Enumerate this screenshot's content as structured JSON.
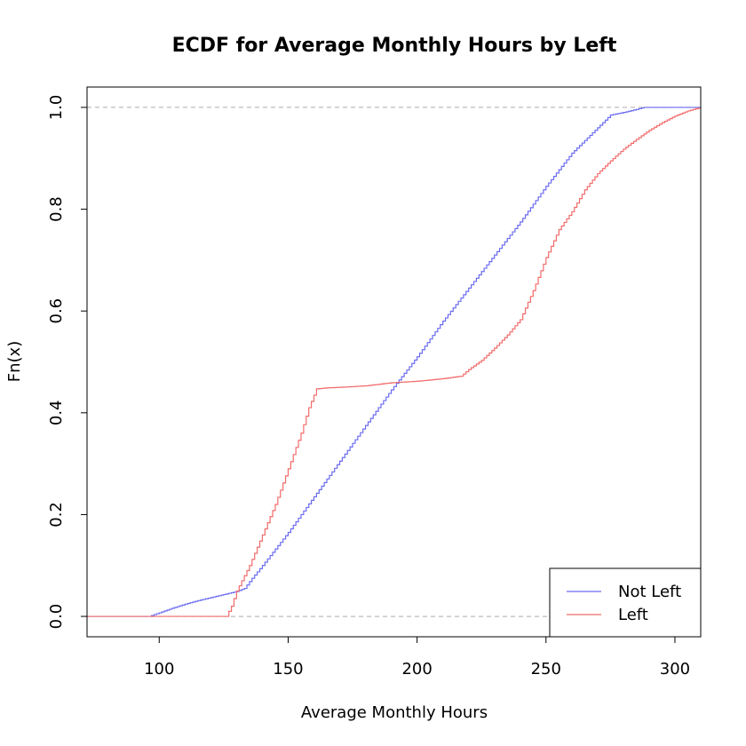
{
  "chart_data": {
    "type": "line",
    "title": "ECDF for Average Monthly Hours by Left",
    "xlabel": "Average Monthly Hours",
    "ylabel": "Fn(x)",
    "xlim": [
      72,
      310
    ],
    "ylim": [
      -0.04,
      1.04
    ],
    "x_ticks": [
      100,
      150,
      200,
      250,
      300
    ],
    "y_ticks": [
      0.0,
      0.2,
      0.4,
      0.6,
      0.8,
      1.0
    ],
    "x_tick_labels": [
      "100",
      "150",
      "200",
      "250",
      "300"
    ],
    "y_tick_labels": [
      "0.0",
      "0.2",
      "0.4",
      "0.6",
      "0.8",
      "1.0"
    ],
    "reference_lines_y": [
      0,
      1
    ],
    "step_hours": 1,
    "legend_position": "bottom-right",
    "series": [
      {
        "name": "Not Left",
        "color": "#6b6bf0",
        "points": [
          [
            72,
            0
          ],
          [
            96,
            0
          ],
          [
            100,
            0.007
          ],
          [
            105,
            0.016
          ],
          [
            110,
            0.024
          ],
          [
            115,
            0.031
          ],
          [
            120,
            0.037
          ],
          [
            125,
            0.043
          ],
          [
            130,
            0.049
          ],
          [
            133,
            0.055
          ],
          [
            136,
            0.075
          ],
          [
            140,
            0.1
          ],
          [
            150,
            0.165
          ],
          [
            160,
            0.235
          ],
          [
            170,
            0.305
          ],
          [
            180,
            0.375
          ],
          [
            190,
            0.445
          ],
          [
            200,
            0.51
          ],
          [
            210,
            0.58
          ],
          [
            220,
            0.645
          ],
          [
            230,
            0.71
          ],
          [
            240,
            0.775
          ],
          [
            250,
            0.845
          ],
          [
            260,
            0.91
          ],
          [
            270,
            0.96
          ],
          [
            275,
            0.985
          ],
          [
            280,
            0.99
          ],
          [
            285,
            0.996
          ],
          [
            288,
            1.0
          ],
          [
            310,
            1.0
          ]
        ]
      },
      {
        "name": "Left",
        "color": "#f26b6b",
        "points": [
          [
            72,
            0
          ],
          [
            126,
            0
          ],
          [
            128,
            0.02
          ],
          [
            130,
            0.05
          ],
          [
            133,
            0.08
          ],
          [
            135,
            0.1
          ],
          [
            140,
            0.16
          ],
          [
            145,
            0.22
          ],
          [
            150,
            0.29
          ],
          [
            155,
            0.36
          ],
          [
            158,
            0.41
          ],
          [
            161,
            0.447
          ],
          [
            165,
            0.449
          ],
          [
            170,
            0.45
          ],
          [
            180,
            0.453
          ],
          [
            190,
            0.459
          ],
          [
            200,
            0.462
          ],
          [
            210,
            0.467
          ],
          [
            217,
            0.472
          ],
          [
            220,
            0.485
          ],
          [
            225,
            0.503
          ],
          [
            230,
            0.527
          ],
          [
            235,
            0.553
          ],
          [
            240,
            0.583
          ],
          [
            245,
            0.64
          ],
          [
            250,
            0.705
          ],
          [
            255,
            0.76
          ],
          [
            260,
            0.795
          ],
          [
            265,
            0.838
          ],
          [
            270,
            0.87
          ],
          [
            275,
            0.895
          ],
          [
            280,
            0.918
          ],
          [
            285,
            0.937
          ],
          [
            290,
            0.955
          ],
          [
            295,
            0.97
          ],
          [
            300,
            0.983
          ],
          [
            305,
            0.993
          ],
          [
            310,
            1.0
          ]
        ]
      }
    ]
  }
}
